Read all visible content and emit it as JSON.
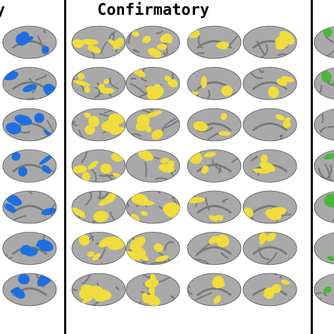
{
  "panels": {
    "left": {
      "title": "y",
      "highlight_color": "#1f6fe0"
    },
    "center": {
      "title": "Confirmatory",
      "highlight_color": "#f0dc3c"
    },
    "right": {
      "title": "",
      "highlight_color": "#49b83a"
    }
  },
  "surface": {
    "base_color": "#a9a9a9",
    "fold_color": "#7a7a7a",
    "outline_color": "#555555"
  },
  "figure": {
    "rows": 7
  }
}
